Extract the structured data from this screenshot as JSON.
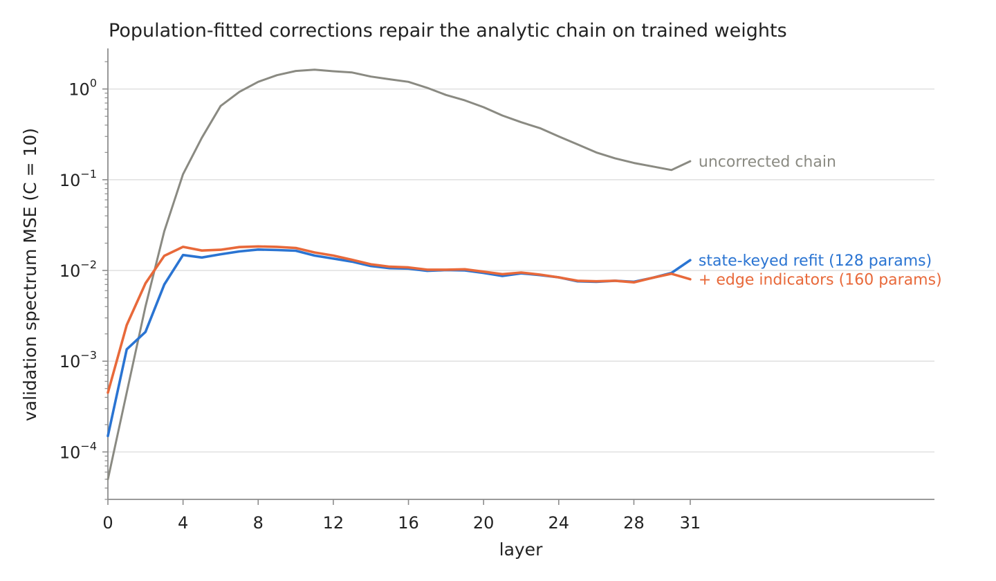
{
  "chart_data": {
    "type": "line",
    "title": "Population-fitted corrections repair the analytic chain on trained weights",
    "xlabel": "layer",
    "ylabel": "validation spectrum MSE (C = 10)",
    "yscale": "log",
    "xlim": [
      0,
      44
    ],
    "ylim": [
      3e-05,
      2.8
    ],
    "grid": "horizontal at major y ticks",
    "legend": "inline labels at right end of each line",
    "x_ticks": [
      0,
      4,
      8,
      12,
      16,
      20,
      24,
      28,
      31
    ],
    "y_ticks": [
      {
        "value": 0.0001,
        "base": "10",
        "exp": "−4"
      },
      {
        "value": 0.001,
        "base": "10",
        "exp": "−3"
      },
      {
        "value": 0.01,
        "base": "10",
        "exp": "−2"
      },
      {
        "value": 0.1,
        "base": "10",
        "exp": "−1"
      },
      {
        "value": 1,
        "base": "10",
        "exp": "0"
      }
    ],
    "x": [
      0,
      1,
      2,
      3,
      4,
      5,
      6,
      7,
      8,
      9,
      10,
      11,
      12,
      13,
      14,
      15,
      16,
      17,
      18,
      19,
      20,
      21,
      22,
      23,
      24,
      25,
      26,
      27,
      28,
      29,
      30,
      31
    ],
    "series": [
      {
        "name": "uncorrected chain",
        "color": "#8a8a82",
        "values": [
          5e-05,
          0.00045,
          0.004,
          0.027,
          0.115,
          0.29,
          0.65,
          0.93,
          1.2,
          1.42,
          1.58,
          1.63,
          1.57,
          1.52,
          1.37,
          1.28,
          1.2,
          1.03,
          0.86,
          0.75,
          0.63,
          0.51,
          0.43,
          0.37,
          0.3,
          0.245,
          0.2,
          0.172,
          0.153,
          0.14,
          0.128,
          0.16
        ],
        "width": 3
      },
      {
        "name": "state-keyed refit (128 params)",
        "color": "#2a74d2",
        "values": [
          0.00015,
          0.00135,
          0.0021,
          0.007,
          0.0148,
          0.0139,
          0.0151,
          0.0162,
          0.017,
          0.0168,
          0.0165,
          0.0146,
          0.0135,
          0.0125,
          0.0112,
          0.0106,
          0.0105,
          0.0099,
          0.0101,
          0.01,
          0.0094,
          0.0087,
          0.0093,
          0.0089,
          0.0084,
          0.0076,
          0.0075,
          0.0077,
          0.0075,
          0.0083,
          0.0094,
          0.013
        ],
        "width": 3.6
      },
      {
        "name": "+ edge indicators (160 params)",
        "color": "#e8693a",
        "values": [
          0.00045,
          0.0025,
          0.0072,
          0.0145,
          0.0182,
          0.0166,
          0.0169,
          0.0181,
          0.0184,
          0.0182,
          0.0177,
          0.0158,
          0.0146,
          0.0131,
          0.0117,
          0.011,
          0.0108,
          0.0102,
          0.0102,
          0.0103,
          0.0097,
          0.0091,
          0.0095,
          0.009,
          0.0084,
          0.0077,
          0.0076,
          0.0077,
          0.0074,
          0.0083,
          0.0092,
          0.008
        ],
        "width": 3.6
      }
    ]
  }
}
